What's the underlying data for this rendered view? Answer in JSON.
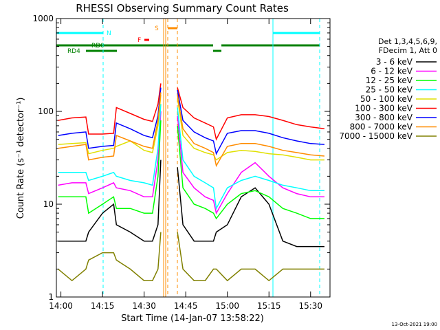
{
  "chart_data": {
    "type": "line",
    "title": "RHESSI Observing Summary Count Rates",
    "xlabel": "Start Time (14-Jan-07 13:58:22)",
    "ylabel": "Count Rate (s⁻¹ detector⁻¹)",
    "legend_title": [
      "Det 1,3,4,5,6,9,",
      "FDecim 1, Att 0"
    ],
    "footer": "13-Oct-2021 19:00",
    "annotations": [
      "N",
      "RD0",
      "RD4",
      "F",
      "S"
    ],
    "log_y": true,
    "xlim": [
      "13:58:22",
      "15:37"
    ],
    "xticks": [
      "14:00",
      "14:15",
      "14:30",
      "14:45",
      "15:00",
      "15:15",
      "15:30"
    ],
    "ylim": [
      1,
      1000
    ],
    "yticks": [
      1,
      10,
      100,
      1000
    ],
    "x": [
      "13:59",
      "14:04",
      "14:09",
      "14:10",
      "14:15",
      "14:19",
      "14:20",
      "14:25",
      "14:30",
      "14:33",
      "14:35",
      "14:36",
      "14:38",
      "14:42",
      "14:44",
      "14:48",
      "14:52",
      "14:55",
      "14:56",
      "15:00",
      "15:05",
      "15:10",
      "15:15",
      "15:20",
      "15:25",
      "15:30",
      "15:35"
    ],
    "series": [
      {
        "name": "3 - 6 keV",
        "color": "#000000",
        "values": [
          4,
          4,
          4,
          5,
          8,
          10,
          6,
          5,
          4,
          4,
          6,
          30,
          null,
          25,
          6,
          4,
          4,
          4,
          5,
          6,
          12,
          15,
          10,
          4,
          3.5,
          3.5,
          3.5
        ]
      },
      {
        "name": "6 - 12 keV",
        "color": "#ff00ff",
        "values": [
          16,
          17,
          17,
          13,
          15,
          17,
          15,
          14,
          12,
          12,
          30,
          100,
          null,
          90,
          22,
          15,
          12,
          11,
          8,
          13,
          22,
          28,
          20,
          15,
          13,
          12,
          12
        ]
      },
      {
        "name": "12 - 25 keV",
        "color": "#00ff00",
        "values": [
          12,
          12,
          12,
          8,
          10,
          12,
          9,
          9,
          8,
          8,
          20,
          80,
          null,
          70,
          15,
          10,
          9,
          8,
          7,
          10,
          13,
          14,
          12,
          9,
          8,
          7,
          7
        ]
      },
      {
        "name": "25 - 50 keV",
        "color": "#00ffff",
        "values": [
          22,
          22,
          22,
          18,
          20,
          22,
          20,
          18,
          17,
          16,
          40,
          120,
          null,
          110,
          30,
          20,
          17,
          15,
          9,
          15,
          18,
          20,
          18,
          16,
          15,
          14,
          14
        ]
      },
      {
        "name": "50 - 100 keV",
        "color": "#e0e000",
        "values": [
          44,
          45,
          46,
          35,
          38,
          40,
          42,
          48,
          38,
          36,
          70,
          150,
          null,
          140,
          55,
          40,
          36,
          34,
          30,
          36,
          38,
          37,
          35,
          34,
          32,
          30,
          30
        ]
      },
      {
        "name": "100 - 300 keV",
        "color": "#ff0000",
        "values": [
          80,
          85,
          87,
          57,
          57,
          58,
          110,
          95,
          82,
          78,
          120,
          200,
          null,
          180,
          110,
          85,
          75,
          68,
          50,
          85,
          92,
          92,
          88,
          80,
          72,
          68,
          65
        ]
      },
      {
        "name": "300 - 800 keV",
        "color": "#0000ff",
        "values": [
          55,
          58,
          60,
          40,
          42,
          43,
          75,
          65,
          55,
          52,
          90,
          180,
          null,
          170,
          80,
          60,
          52,
          48,
          35,
          58,
          62,
          62,
          58,
          52,
          48,
          45,
          44
        ]
      },
      {
        "name": "800 - 7000 keV",
        "color": "#ff8c00",
        "values": [
          40,
          42,
          44,
          30,
          32,
          33,
          55,
          48,
          42,
          40,
          80,
          160,
          null,
          150,
          65,
          45,
          40,
          36,
          26,
          42,
          45,
          45,
          42,
          38,
          36,
          34,
          33
        ]
      },
      {
        "name": "7000 - 15000 keV",
        "color": "#808000",
        "values": [
          2,
          1.5,
          2,
          2.5,
          3,
          3,
          2.5,
          2,
          1.5,
          1.5,
          2,
          5,
          null,
          5,
          2,
          1.5,
          1.5,
          2,
          2,
          1.5,
          2,
          2,
          1.5,
          2,
          2,
          2,
          2
        ]
      }
    ]
  }
}
